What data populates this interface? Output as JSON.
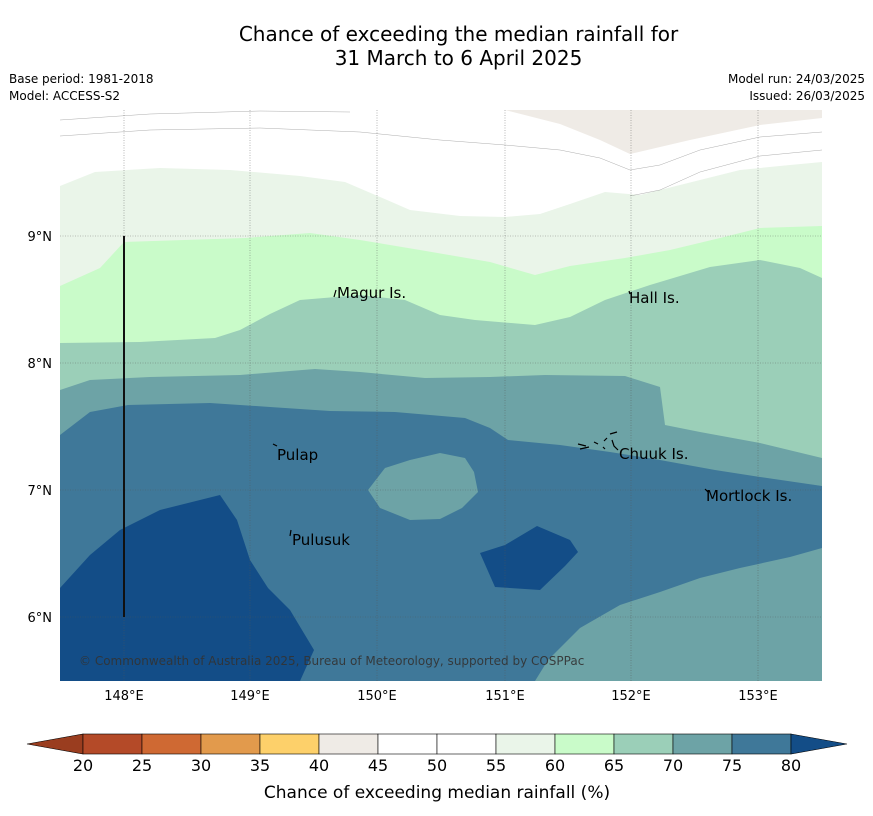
{
  "title_line1": "Chance of exceeding the median rainfall for",
  "title_line2": "31 March to 6 April 2025",
  "base_period": "Base period: 1981-2018",
  "model": "Model: ACCESS-S2",
  "model_run": "Model run: 24/03/2025",
  "issued": "Issued: 26/03/2025",
  "copyright": "© Commonwealth of Australia 2025, Bureau of Meteorology, supported by COSPPac",
  "colorbar": {
    "title": "Chance of exceeding median rainfall (%)",
    "ticks": [
      "20",
      "25",
      "30",
      "35",
      "40",
      "45",
      "50",
      "55",
      "60",
      "65",
      "70",
      "75",
      "80"
    ],
    "colors": [
      "#b44a28",
      "#cf6933",
      "#e29a4c",
      "#fdd06a",
      "#efebe6",
      "#ffffff",
      "#ffffff",
      "#eaf5e9",
      "#c9fbc9",
      "#9bcfb8",
      "#6da3a6",
      "#3f7899"
    ],
    "under_color": "#9a3d1f",
    "over_color": "#134d87"
  },
  "map": {
    "lon_ticks": [
      "148°E",
      "149°E",
      "150°E",
      "151°E",
      "152°E",
      "153°E"
    ],
    "lat_ticks": [
      "9°N",
      "8°N",
      "7°N",
      "6°N"
    ],
    "places": [
      {
        "name": "Magur Is."
      },
      {
        "name": "Hall Is."
      },
      {
        "name": "Pulap"
      },
      {
        "name": "Chuuk Is."
      },
      {
        "name": "Mortlock Is."
      },
      {
        "name": "Pulusuk"
      }
    ],
    "fill_colors": {
      "c45": "#efebe6",
      "c50": "#ffffff",
      "c55": "#eaf5e9",
      "c60": "#c9fbc9",
      "c65": "#9bcfb8",
      "c70": "#6da3a6",
      "c75": "#3f7899",
      "c80": "#134d87"
    }
  }
}
